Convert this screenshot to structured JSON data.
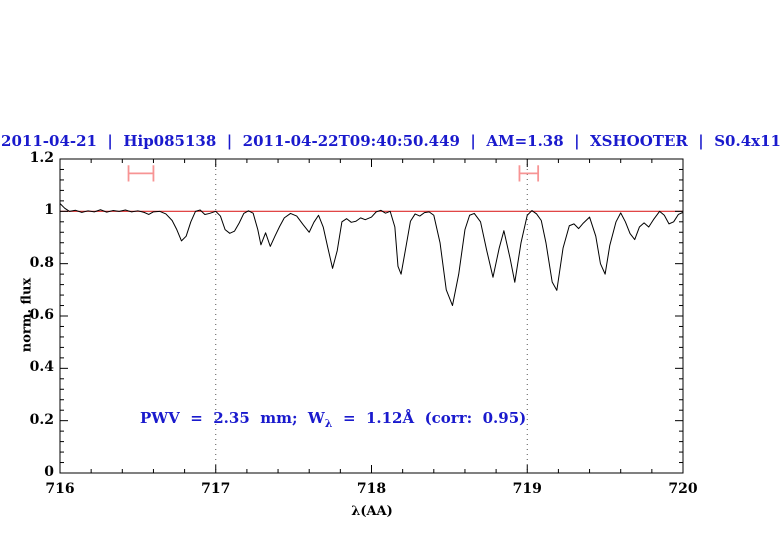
{
  "figure": {
    "title": "2011-04-21  |  Hip085138  |  2011-04-22T09:40:50.449  |  AM=1.38  |  XSHOOTER  |  S0.4x11",
    "x_axis": {
      "label": "λ(AA)",
      "range": [
        716,
        720
      ],
      "tick_values": [
        716,
        717,
        718,
        719,
        720
      ],
      "tick_labels": [
        "716",
        "717",
        "718",
        "719",
        "720"
      ],
      "minor_step": 0.2
    },
    "y_axis": {
      "label": "norm. flux",
      "range": [
        0,
        1.2
      ],
      "tick_values": [
        0,
        0.2,
        0.4,
        0.6,
        0.8,
        1,
        1.2
      ],
      "tick_labels": [
        "0",
        "0.2",
        "0.4",
        "0.6",
        "0.8",
        "1",
        "1.2"
      ],
      "minor_step": 0.04
    },
    "annotation": {
      "prefix": "PWV  =  2.35  mm;  W",
      "subscript": "λ",
      "suffix": "  =  1.12Å  (corr:  0.95)"
    },
    "colors": {
      "accent_text": "#1a1acd",
      "spectrum": "#000000",
      "continuum": "#dd2b2b",
      "marker": "#f79494",
      "dotted_line": "#555555",
      "axis": "#000000"
    }
  },
  "chart_data": {
    "type": "line",
    "title": "2011-04-21  |  Hip085138  |  2011-04-22T09:40:50.449  |  AM=1.38  |  XSHOOTER  |  S0.4x11",
    "xlabel": "λ(AA)",
    "ylabel": "norm. flux",
    "xlim": [
      716,
      720
    ],
    "ylim": [
      0,
      1.2
    ],
    "grid": false,
    "legend": "none",
    "annotation_text": "PWV = 2.35 mm; W_λ = 1.12Å (corr: 0.95)",
    "dotted_vlines_x": [
      717,
      719
    ],
    "range_markers": [
      {
        "x1": 716.44,
        "x2": 716.6,
        "y": 1.145,
        "cap_half_height": 0.031
      },
      {
        "x1": 718.95,
        "x2": 719.07,
        "y": 1.145,
        "cap_half_height": 0.031
      }
    ],
    "series": [
      {
        "name": "observed-spectrum",
        "x": [
          716.0,
          716.03,
          716.06,
          716.1,
          716.14,
          716.18,
          716.22,
          716.26,
          716.3,
          716.34,
          716.38,
          716.42,
          716.46,
          716.5,
          716.54,
          716.57,
          716.6,
          716.64,
          716.68,
          716.72,
          716.75,
          716.78,
          716.81,
          716.84,
          716.87,
          716.9,
          716.93,
          716.96,
          717.0,
          717.03,
          717.06,
          717.09,
          717.12,
          717.15,
          717.18,
          717.21,
          717.24,
          717.27,
          717.29,
          717.32,
          717.35,
          717.38,
          717.41,
          717.44,
          717.48,
          717.52,
          717.56,
          717.6,
          717.63,
          717.66,
          717.69,
          717.72,
          717.75,
          717.78,
          717.81,
          717.84,
          717.87,
          717.9,
          717.93,
          717.96,
          718.0,
          718.03,
          718.06,
          718.09,
          718.12,
          718.15,
          718.17,
          718.19,
          718.22,
          718.25,
          718.28,
          718.31,
          718.34,
          718.37,
          718.4,
          718.44,
          718.48,
          718.52,
          718.56,
          718.6,
          718.63,
          718.66,
          718.7,
          718.74,
          718.78,
          718.82,
          718.85,
          718.89,
          718.92,
          718.96,
          719.0,
          719.03,
          719.06,
          719.09,
          719.12,
          719.16,
          719.19,
          719.23,
          719.27,
          719.3,
          719.33,
          719.36,
          719.4,
          719.44,
          719.47,
          719.5,
          719.53,
          719.57,
          719.6,
          719.63,
          719.66,
          719.69,
          719.72,
          719.75,
          719.78,
          719.81,
          719.85,
          719.88,
          719.91,
          719.94,
          719.97,
          720.0
        ],
        "y": [
          1.03,
          1.012,
          1.0,
          1.004,
          0.996,
          1.002,
          0.998,
          1.006,
          0.997,
          1.003,
          1.0,
          1.005,
          0.998,
          1.002,
          0.996,
          0.988,
          0.998,
          1.0,
          0.99,
          0.965,
          0.93,
          0.887,
          0.905,
          0.96,
          1.0,
          1.005,
          0.988,
          0.992,
          1.0,
          0.982,
          0.93,
          0.916,
          0.924,
          0.955,
          0.992,
          1.002,
          0.993,
          0.93,
          0.872,
          0.918,
          0.866,
          0.905,
          0.942,
          0.975,
          0.992,
          0.982,
          0.95,
          0.92,
          0.958,
          0.985,
          0.94,
          0.86,
          0.782,
          0.85,
          0.96,
          0.972,
          0.958,
          0.962,
          0.975,
          0.968,
          0.978,
          0.998,
          1.004,
          0.993,
          1.0,
          0.94,
          0.79,
          0.76,
          0.86,
          0.962,
          0.99,
          0.982,
          0.995,
          0.998,
          0.985,
          0.88,
          0.7,
          0.64,
          0.76,
          0.93,
          0.985,
          0.992,
          0.96,
          0.85,
          0.748,
          0.86,
          0.926,
          0.82,
          0.729,
          0.88,
          0.985,
          1.003,
          0.99,
          0.965,
          0.88,
          0.73,
          0.698,
          0.86,
          0.945,
          0.952,
          0.934,
          0.955,
          0.978,
          0.905,
          0.8,
          0.76,
          0.87,
          0.96,
          0.994,
          0.96,
          0.915,
          0.892,
          0.94,
          0.956,
          0.94,
          0.968,
          1.0,
          0.985,
          0.952,
          0.96,
          0.988,
          0.996
        ]
      },
      {
        "name": "continuum-fit",
        "y_const": 1.0
      }
    ]
  }
}
